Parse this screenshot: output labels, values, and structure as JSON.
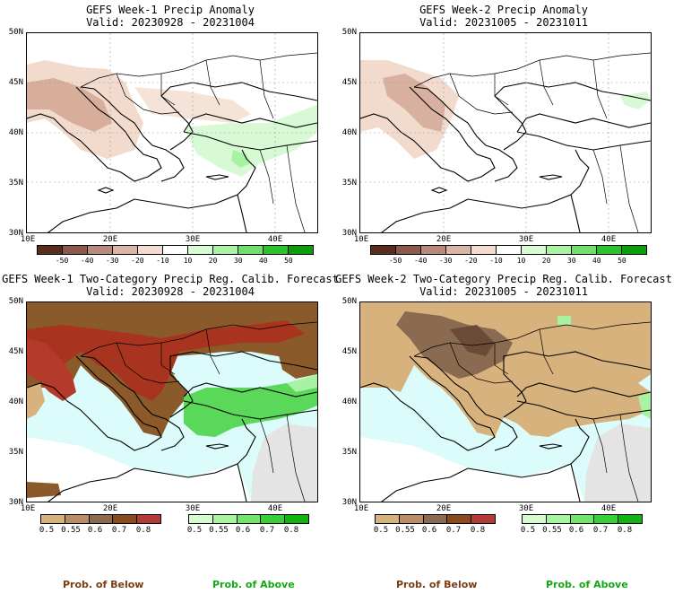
{
  "panels": [
    {
      "title_line1": "GEFS Week-1 Precip Anomaly",
      "title_line2": "Valid: 20230928 - 20231004"
    },
    {
      "title_line1": "GEFS Week-2 Precip Anomaly",
      "title_line2": "Valid: 20231005 - 20231011"
    },
    {
      "title_line1": "GEFS Week-1 Two-Category Precip Reg. Calib. Forecast",
      "title_line2": "Valid: 20230928 - 20231004"
    },
    {
      "title_line1": "GEFS Week-2 Two-Category Precip Reg. Calib. Forecast",
      "title_line2": "Valid: 20231005 - 20231011"
    }
  ],
  "axes": {
    "lat_labels": [
      "50N",
      "45N",
      "40N",
      "35N",
      "30N"
    ],
    "lon_labels": [
      "10E",
      "20E",
      "30E",
      "40E"
    ]
  },
  "anomaly_legend": {
    "ticks": [
      "-50",
      "-40",
      "-30",
      "-20",
      "-10",
      "10",
      "20",
      "30",
      "40",
      "50"
    ],
    "colors": [
      "#5b2d1f",
      "#8b5a4a",
      "#b98a7b",
      "#dab4a4",
      "#f3dccf",
      "#ffffff",
      "#d8fbd4",
      "#a9f3a3",
      "#6fe06a",
      "#2bc22b",
      "#0a9f0a"
    ]
  },
  "prob_legend": {
    "below_ticks": [
      "0.5",
      "0.55",
      "0.6",
      "0.7",
      "0.8"
    ],
    "below_colors": [
      "#d7b27c",
      "#b98e66",
      "#8c6a50",
      "#8a4a1e",
      "#b33a35"
    ],
    "above_ticks": [
      "0.5",
      "0.55",
      "0.6",
      "0.7",
      "0.8"
    ],
    "above_colors": [
      "#d5fbcf",
      "#a7f5a0",
      "#6fe56b",
      "#39cf39",
      "#11b311"
    ],
    "below_label": "Prob. of Below",
    "above_label": "Prob. of Above",
    "below_label_color": "#7a3e12",
    "above_label_color": "#11aa11"
  },
  "map_colors": {
    "sea": "#dcfbfb",
    "gray_land": "#e4e4e4",
    "brown_light": "#d8b27d",
    "brown_dark": "#8a5a2a",
    "red_brown": "#a8341f",
    "green": "#5ad85a",
    "green_light": "#a8f2a4",
    "anom_neg": "#f1d7c8",
    "anom_neg_dark": "#d3a896",
    "anom_pos": "#d7fad4"
  }
}
